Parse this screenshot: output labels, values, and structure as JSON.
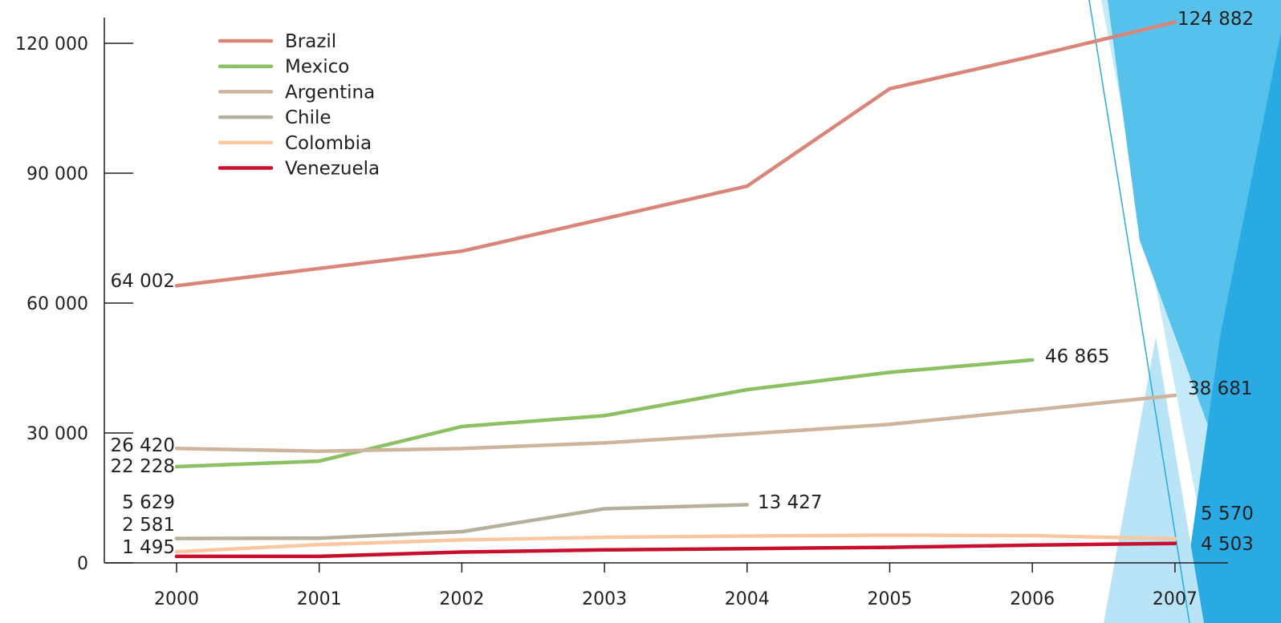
{
  "chart_data": {
    "type": "line",
    "x": [
      2000,
      2001,
      2002,
      2003,
      2004,
      2005,
      2006,
      2007
    ],
    "x_tick_labels": [
      "2000",
      "2001",
      "2002",
      "2003",
      "2004",
      "2005",
      "2006",
      "2007"
    ],
    "y_ticks": [
      0,
      30000,
      60000,
      90000,
      120000
    ],
    "y_tick_labels": [
      "0",
      "30 000",
      "60 000",
      "90 000",
      "120 000"
    ],
    "ylim": [
      0,
      125000
    ],
    "grid": false,
    "legend_position": "top-left",
    "series": [
      {
        "name": "Brazil",
        "color": "#d9857a",
        "values": [
          64002,
          68000,
          72000,
          79500,
          87000,
          109500,
          117000,
          124882
        ]
      },
      {
        "name": "Mexico",
        "color": "#8cc063",
        "values": [
          22228,
          23500,
          31500,
          34000,
          40000,
          44000,
          46865,
          null
        ]
      },
      {
        "name": "Argentina",
        "color": "#cfb49d",
        "values": [
          26420,
          25800,
          26400,
          27700,
          29800,
          32000,
          35300,
          38681
        ]
      },
      {
        "name": "Chile",
        "color": "#b6b09b",
        "values": [
          5629,
          5700,
          7200,
          12500,
          13427,
          null,
          null,
          null
        ]
      },
      {
        "name": "Colombia",
        "color": "#f8c8a2",
        "values": [
          2581,
          4200,
          5300,
          5900,
          6200,
          6400,
          6300,
          5570
        ]
      },
      {
        "name": "Venezuela",
        "color": "#c8102e",
        "values": [
          1495,
          1500,
          2500,
          3000,
          3300,
          3600,
          4100,
          4503
        ]
      }
    ],
    "data_labels": [
      {
        "series": "Brazil",
        "x": 2000,
        "text": "64 002"
      },
      {
        "series": "Brazil",
        "x": 2007,
        "text": "124 882"
      },
      {
        "series": "Mexico",
        "x": 2000,
        "text": "22 228"
      },
      {
        "series": "Mexico",
        "x": 2006,
        "text": "46 865"
      },
      {
        "series": "Argentina",
        "x": 2000,
        "text": "26 420"
      },
      {
        "series": "Argentina",
        "x": 2007,
        "text": "38 681"
      },
      {
        "series": "Chile",
        "x": 2000,
        "text": "5 629"
      },
      {
        "series": "Chile",
        "x": 2004,
        "text": "13 427"
      },
      {
        "series": "Colombia",
        "x": 2000,
        "text": "2 581"
      },
      {
        "series": "Colombia",
        "x": 2007,
        "text": "5 570"
      },
      {
        "series": "Venezuela",
        "x": 2000,
        "text": "1 495"
      },
      {
        "series": "Venezuela",
        "x": 2007,
        "text": "4 503"
      }
    ]
  },
  "decoration": {
    "accent_colors": [
      "#29aae2",
      "#56c2ec",
      "#8ed4f2",
      "#c4e9f9"
    ]
  }
}
